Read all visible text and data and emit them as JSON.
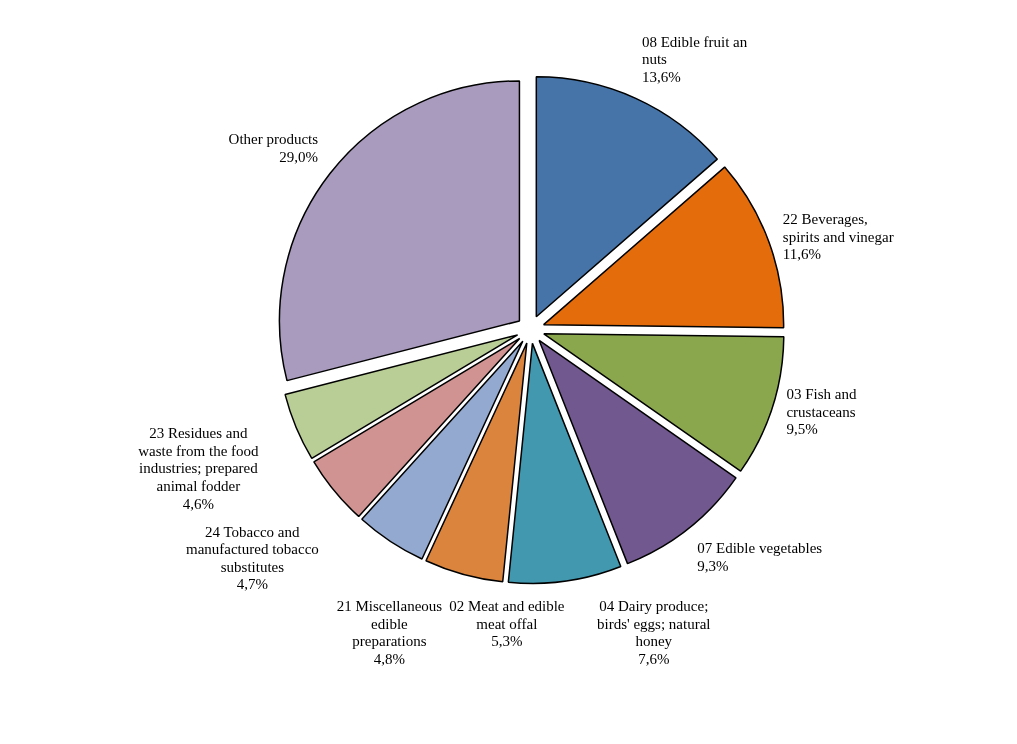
{
  "chart_data": {
    "type": "pie",
    "categories": [
      "08 Edible fruit an nuts",
      "22 Beverages, spirits and vinegar",
      "03  Fish and crustaceans",
      "07 Edible vegetables",
      "04 Dairy produce; birds' eggs; natural honey",
      "02 Meat and edible meat offal",
      "21 Miscellaneous edible preparations",
      "24 Tobacco and manufactured tobacco substitutes",
      "23 Residues and waste from the food industries; prepared animal fodder",
      "Other products"
    ],
    "values": [
      13.6,
      11.6,
      9.5,
      9.3,
      7.6,
      5.3,
      4.8,
      4.7,
      4.6,
      29.0
    ],
    "value_labels": [
      "13,6%",
      "11,6%",
      "9,5%",
      "9,3%",
      "7,6%",
      "5,3%",
      "4,8%",
      "4,7%",
      "4,6%",
      "29,0%"
    ],
    "colors": [
      "#4674a8",
      "#e46c0a",
      "#8ba74e",
      "#71588f",
      "#4198af",
      "#db843d",
      "#93a9cf",
      "#d19392",
      "#b9cd96",
      "#a99bbd"
    ]
  }
}
